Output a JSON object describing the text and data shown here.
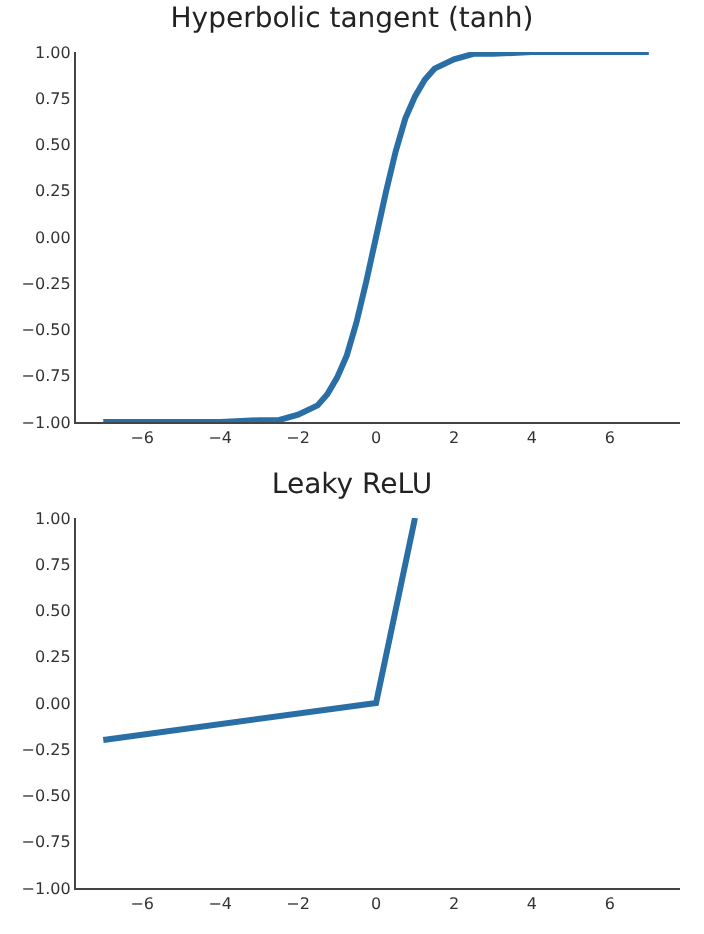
{
  "chart_data": [
    {
      "type": "line",
      "title": "Hyperbolic tangent (tanh)",
      "x": [
        -7,
        -4,
        -3,
        -2.5,
        -2,
        -1.5,
        -1.25,
        -1,
        -0.75,
        -0.5,
        -0.25,
        0,
        0.25,
        0.5,
        0.75,
        1,
        1.25,
        1.5,
        2,
        2.5,
        3,
        4,
        7
      ],
      "series": [
        {
          "color": "#2a6ea6",
          "values": [
            -1,
            -1,
            -0.99,
            -0.99,
            -0.96,
            -0.91,
            -0.85,
            -0.76,
            -0.64,
            -0.46,
            -0.24,
            0,
            0.24,
            0.46,
            0.64,
            0.76,
            0.85,
            0.91,
            0.96,
            0.99,
            0.99,
            1,
            1
          ]
        }
      ],
      "xlim": [
        -7.7,
        7.8
      ],
      "xticks": [
        -6,
        -4,
        -2,
        0,
        2,
        4,
        6
      ],
      "ylim": [
        -1,
        1
      ],
      "yticks": [
        {
          "value": -1,
          "label": "−1.00"
        },
        {
          "value": -0.75,
          "label": "−0.75"
        },
        {
          "value": -0.5,
          "label": "−0.50"
        },
        {
          "value": -0.25,
          "label": "−0.25"
        },
        {
          "value": 0,
          "label": "0.00"
        },
        {
          "value": 0.25,
          "label": "0.25"
        },
        {
          "value": 0.5,
          "label": "0.50"
        },
        {
          "value": 0.75,
          "label": "0.75"
        },
        {
          "value": 1,
          "label": "1.00"
        }
      ],
      "grid": false,
      "marker": "none",
      "line_style": "solid"
    },
    {
      "type": "line",
      "title": "Leaky ReLU",
      "x": [
        -7,
        0,
        1
      ],
      "series": [
        {
          "color": "#2a6ea6",
          "values": [
            -0.2,
            0,
            1
          ]
        }
      ],
      "xlim": [
        -7.7,
        7.8
      ],
      "xticks": [
        -6,
        -4,
        -2,
        0,
        2,
        4,
        6
      ],
      "ylim": [
        -1,
        1
      ],
      "yticks": [
        {
          "value": -1,
          "label": "−1.00"
        },
        {
          "value": -0.75,
          "label": "−0.75"
        },
        {
          "value": -0.5,
          "label": "−0.50"
        },
        {
          "value": -0.25,
          "label": "−0.25"
        },
        {
          "value": 0,
          "label": "0.00"
        },
        {
          "value": 0.25,
          "label": "0.25"
        },
        {
          "value": 0.5,
          "label": "0.50"
        },
        {
          "value": 0.75,
          "label": "0.75"
        },
        {
          "value": 1,
          "label": "1.00"
        }
      ],
      "grid": false,
      "marker": "none",
      "line_style": "solid"
    }
  ]
}
